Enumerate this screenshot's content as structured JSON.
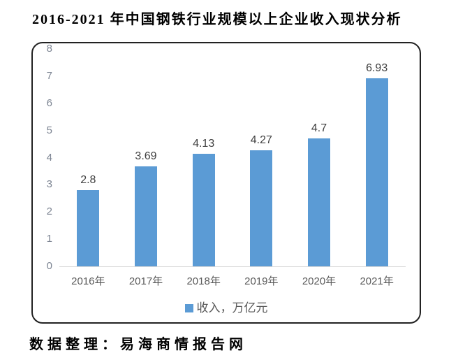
{
  "page": {
    "title": "2016-2021 年中国钢铁行业规模以上企业收入现状分析",
    "source": "数据整理：易海商情报告网"
  },
  "chart_data": {
    "type": "bar",
    "title": "2016-2021 年中国钢铁行业规模以上企业收入现状分析",
    "categories": [
      "2016年",
      "2017年",
      "2018年",
      "2019年",
      "2020年",
      "2021年"
    ],
    "series": [
      {
        "name": "收入，万亿元",
        "values": [
          2.8,
          3.69,
          4.13,
          4.27,
          4.7,
          6.93
        ]
      }
    ],
    "data_labels": [
      "2.8",
      "3.69",
      "4.13",
      "4.27",
      "4.7",
      "6.93"
    ],
    "xlabel": "",
    "ylabel": "",
    "ylim": [
      0,
      8
    ],
    "yticks": [
      0,
      1,
      2,
      3,
      4,
      5,
      6,
      7,
      8
    ],
    "grid": false,
    "legend_position": "bottom",
    "legend_label": "收入，万亿元",
    "colors": {
      "bar": "#5B9BD5",
      "axis_line": "#d9d9d9",
      "y_tick_text": "#7d8593",
      "x_tick_text": "#595959",
      "data_label_text": "#3f3f3f",
      "legend_text": "#595959",
      "border": "#222222"
    }
  }
}
